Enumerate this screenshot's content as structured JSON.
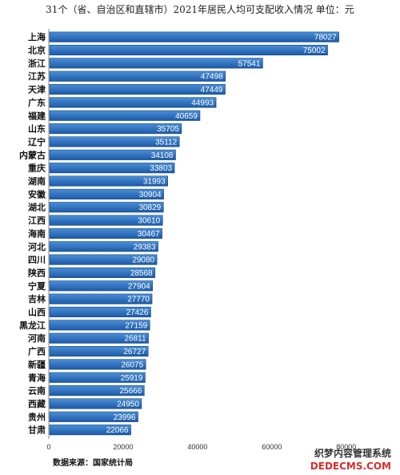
{
  "chart_data": {
    "type": "bar",
    "orientation": "horizontal",
    "title": "31个（省、自治区和直辖市）2021年居民人均可支配收入情况 单位：元",
    "categories": [
      "上海",
      "北京",
      "浙江",
      "江苏",
      "天津",
      "广东",
      "福建",
      "山东",
      "辽宁",
      "内蒙古",
      "重庆",
      "湖南",
      "安徽",
      "湖北",
      "江西",
      "海南",
      "河北",
      "四川",
      "陕西",
      "宁夏",
      "吉林",
      "山西",
      "黑龙江",
      "河南",
      "广西",
      "新疆",
      "青海",
      "云南",
      "西藏",
      "贵州",
      "甘肃"
    ],
    "values": [
      78027,
      75002,
      57541,
      47498,
      47449,
      44993,
      40659,
      35705,
      35112,
      34108,
      33803,
      31993,
      30904,
      30829,
      30610,
      30467,
      29383,
      29080,
      28568,
      27904,
      27770,
      27426,
      27159,
      26811,
      26727,
      26075,
      25919,
      25666,
      24950,
      23996,
      22066
    ],
    "value_labels": [
      "78027",
      "75002",
      "57541",
      "47498",
      "47449",
      "44993",
      "40659",
      "35705",
      "35112",
      "34108",
      "33803",
      "31993",
      "30904",
      "30829",
      "30610",
      "30467",
      "29383",
      "29080",
      "28568",
      "27904",
      "27770",
      "27426",
      "27159",
      "26811",
      "26727",
      "26075",
      "25919",
      "25666",
      "24950",
      "23996",
      "22066"
    ],
    "xlim": [
      0,
      85000
    ],
    "xticks": [
      0,
      20000,
      40000,
      60000,
      80000
    ],
    "xtick_labels": [
      "0",
      "20000",
      "40000",
      "60000",
      "80000"
    ],
    "grid": false,
    "colors": {
      "bar_top": "#4a8fd6",
      "bar_bottom": "#1d5aa8",
      "bar_edge": "#16477f"
    }
  },
  "source": "数据来源：国家统计局",
  "watermark": {
    "line1": "织梦内容管理系统",
    "line2": "DEDECMS.COM"
  }
}
